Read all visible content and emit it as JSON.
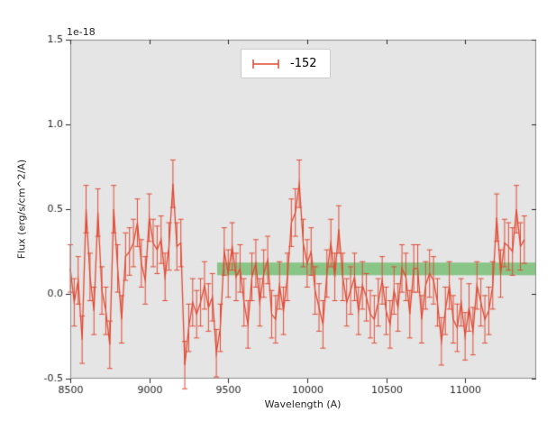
{
  "figure": {
    "background": "#ffffff",
    "plot_background": "#e5e5e5",
    "tick_color": "#262626",
    "frame_color": "#8a8a8a"
  },
  "chart_data": {
    "type": "line",
    "title": "",
    "xlabel": "Wavelength (A)",
    "ylabel": "Flux (erg/s/cm^2/A)",
    "offset_text": "1e-18",
    "xlim": [
      8500,
      11450
    ],
    "ylim": [
      -0.5,
      1.5
    ],
    "grid": false,
    "legend": {
      "label": "-152",
      "position": "upper center"
    },
    "x_ticks": [
      8500,
      9000,
      9500,
      10000,
      10500,
      11000
    ],
    "x_tick_labels": [
      "8500",
      "9000",
      "9500",
      "10000",
      "10500",
      "11000"
    ],
    "y_ticks": [
      -0.5,
      0.0,
      0.5,
      1.0,
      1.5
    ],
    "y_tick_labels": [
      "-0.5",
      "0.0",
      "0.5",
      "1.0",
      "1.5"
    ],
    "band": {
      "x_min": 9430,
      "x_max": 11450,
      "y_min": 0.11,
      "y_max": 0.185,
      "color": "#4daf4a",
      "alpha": 0.6
    },
    "series": [
      {
        "name": "-152",
        "color": "#e24a33",
        "yerr": 0.14,
        "x": [
          8500,
          8525,
          8550,
          8575,
          8600,
          8625,
          8650,
          8675,
          8700,
          8725,
          8750,
          8775,
          8800,
          8825,
          8850,
          8875,
          8900,
          8925,
          8950,
          8975,
          9000,
          9025,
          9050,
          9075,
          9100,
          9125,
          9150,
          9175,
          9200,
          9225,
          9250,
          9275,
          9300,
          9325,
          9350,
          9375,
          9400,
          9425,
          9450,
          9475,
          9500,
          9525,
          9550,
          9575,
          9600,
          9625,
          9650,
          9675,
          9700,
          9725,
          9750,
          9775,
          9800,
          9825,
          9850,
          9875,
          9900,
          9925,
          9950,
          9975,
          10000,
          10025,
          10050,
          10075,
          10100,
          10125,
          10150,
          10175,
          10200,
          10225,
          10250,
          10275,
          10300,
          10325,
          10350,
          10375,
          10400,
          10425,
          10450,
          10475,
          10500,
          10525,
          10550,
          10575,
          10600,
          10625,
          10650,
          10675,
          10700,
          10725,
          10750,
          10775,
          10800,
          10825,
          10850,
          10875,
          10900,
          10925,
          10950,
          10975,
          11000,
          11025,
          11050,
          11075,
          11100,
          11125,
          11150,
          11175,
          11200,
          11225,
          11250,
          11275,
          11300,
          11325,
          11350,
          11375
        ],
        "y": [
          0.15,
          -0.05,
          0.08,
          -0.27,
          0.5,
          0.1,
          -0.1,
          0.48,
          0.02,
          -0.1,
          -0.3,
          0.5,
          0.15,
          -0.15,
          0.22,
          0.25,
          0.3,
          0.42,
          0.18,
          0.08,
          0.45,
          0.3,
          0.26,
          0.32,
          0.1,
          0.28,
          0.65,
          0.28,
          0.3,
          -0.42,
          -0.2,
          -0.05,
          -0.12,
          -0.05,
          0.05,
          -0.08,
          -0.02,
          -0.35,
          -0.2,
          0.25,
          0.12,
          0.28,
          0.1,
          0.15,
          -0.05,
          -0.18,
          0.1,
          0.18,
          -0.05,
          0.12,
          0.2,
          -0.12,
          -0.15,
          0.05,
          -0.1,
          0.1,
          0.42,
          0.48,
          0.65,
          0.3,
          0.18,
          0.25,
          0.02,
          -0.08,
          -0.18,
          0.12,
          0.3,
          0.1,
          0.38,
          0.1,
          -0.05,
          0.02,
          0.1,
          -0.1,
          0.05,
          -0.02,
          -0.12,
          -0.15,
          -0.05,
          0.08,
          -0.1,
          -0.18,
          0.02,
          -0.08,
          0.15,
          0.1,
          -0.12,
          0.15,
          0.15,
          -0.15,
          0.05,
          0.12,
          0.08,
          -0.05,
          -0.28,
          -0.1,
          0.05,
          -0.15,
          -0.2,
          -0.05,
          -0.25,
          -0.08,
          -0.22,
          0.05,
          -0.05,
          -0.15,
          -0.1,
          0.05,
          0.45,
          0.12,
          0.3,
          0.28,
          0.25,
          0.5,
          0.28,
          0.32
        ]
      }
    ]
  }
}
